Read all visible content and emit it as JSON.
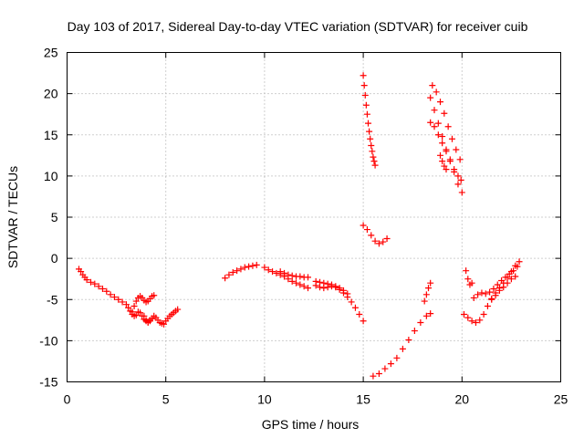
{
  "chart_data": {
    "type": "scatter",
    "title": "Day 103 of 2017, Sidereal Day-to-day VTEC variation (SDTVAR) for receiver cuib",
    "xlabel": "GPS time / hours",
    "ylabel": "SDTVAR / TECUs",
    "xlim": [
      0,
      25
    ],
    "ylim": [
      -15,
      25
    ],
    "xticks": [
      "0",
      "5",
      "10",
      "15",
      "20",
      "25"
    ],
    "yticks": [
      "-15",
      "-10",
      "-5",
      "0",
      "5",
      "10",
      "15",
      "20",
      "25"
    ],
    "xtick_values": [
      0,
      5,
      10,
      15,
      20,
      25
    ],
    "ytick_values": [
      -15,
      -10,
      -5,
      0,
      5,
      10,
      15,
      20,
      25
    ],
    "grid": true,
    "marker": "plus",
    "color": "#ff0000",
    "series": [
      {
        "x": [
          0.6,
          0.7,
          0.8,
          0.9,
          1.0,
          1.2,
          1.4,
          1.6,
          1.8,
          2.0,
          2.2,
          2.4,
          2.6,
          2.8,
          3.0,
          3.1,
          3.2,
          3.3,
          3.4,
          3.5,
          3.6,
          3.7,
          3.8,
          3.9,
          4.0,
          4.1,
          4.2,
          4.3
        ],
        "y": [
          -1.3,
          -1.6,
          -2.0,
          -2.3,
          -2.6,
          -2.9,
          -3.1,
          -3.4,
          -3.7,
          -4.0,
          -4.4,
          -4.7,
          -5.0,
          -5.3,
          -5.6,
          -6.0,
          -6.4,
          -6.8,
          -7.0,
          -6.9,
          -6.5,
          -6.6,
          -7.0,
          -7.4,
          -7.6,
          -7.7,
          -7.5,
          -7.3
        ]
      },
      {
        "x": [
          3.3,
          3.4,
          3.5,
          3.6,
          3.7,
          3.8,
          3.9,
          4.0,
          4.1,
          4.2,
          4.3,
          4.4
        ],
        "y": [
          -6.5,
          -5.8,
          -5.2,
          -4.8,
          -4.6,
          -4.8,
          -5.1,
          -5.3,
          -5.2,
          -4.9,
          -4.6,
          -4.5
        ]
      },
      {
        "x": [
          3.9,
          4.0,
          4.1,
          4.2,
          4.3,
          4.4,
          4.5,
          4.6,
          4.7,
          4.8,
          4.9,
          5.0,
          5.1,
          5.2,
          5.3,
          5.4,
          5.5,
          5.6
        ],
        "y": [
          -7.0,
          -7.5,
          -7.8,
          -7.6,
          -7.3,
          -7.0,
          -7.2,
          -7.5,
          -7.8,
          -7.9,
          -8.0,
          -7.6,
          -7.3,
          -7.0,
          -6.8,
          -6.6,
          -6.4,
          -6.2
        ]
      },
      {
        "x": [
          8.0,
          8.2,
          8.4,
          8.6,
          8.8,
          9.0,
          9.2,
          9.4,
          9.6
        ],
        "y": [
          -2.4,
          -2.0,
          -1.7,
          -1.5,
          -1.3,
          -1.1,
          -1.0,
          -0.9,
          -0.8
        ]
      },
      {
        "x": [
          10.0,
          10.2,
          10.4,
          10.6,
          10.8,
          11.0,
          11.2,
          11.4,
          11.6,
          11.8,
          12.0,
          12.2
        ],
        "y": [
          -1.1,
          -1.4,
          -1.6,
          -1.8,
          -2.0,
          -2.2,
          -2.5,
          -2.8,
          -3.0,
          -3.2,
          -3.4,
          -3.6
        ]
      },
      {
        "x": [
          10.8,
          11.0,
          11.2,
          11.4,
          11.6,
          11.8,
          12.0,
          12.2
        ],
        "y": [
          -1.6,
          -1.8,
          -2.0,
          -2.1,
          -2.2,
          -2.2,
          -2.3,
          -2.3
        ]
      },
      {
        "x": [
          12.6,
          12.8,
          13.0,
          13.2,
          13.4,
          13.6,
          13.8,
          14.0,
          14.2,
          14.4,
          14.6,
          14.8,
          15.0
        ],
        "y": [
          -3.3,
          -3.5,
          -3.6,
          -3.5,
          -3.4,
          -3.5,
          -3.8,
          -4.2,
          -4.7,
          -5.3,
          -6.0,
          -6.8,
          -7.6
        ]
      },
      {
        "x": [
          12.6,
          12.8,
          13.0,
          13.2,
          13.4,
          13.6,
          13.8,
          14.0,
          14.2
        ],
        "y": [
          -2.8,
          -2.9,
          -3.0,
          -3.1,
          -3.2,
          -3.4,
          -3.6,
          -3.9,
          -4.3
        ]
      },
      {
        "x": [
          15.0,
          15.05,
          15.1,
          15.15,
          15.2,
          15.25,
          15.3,
          15.35,
          15.4,
          15.45,
          15.5,
          15.55,
          15.6
        ],
        "y": [
          22.2,
          21.0,
          19.8,
          18.6,
          17.5,
          16.4,
          15.4,
          14.5,
          13.7,
          13.0,
          12.3,
          11.8,
          11.3
        ]
      },
      {
        "x": [
          15.0,
          15.2,
          15.4,
          15.6,
          15.8,
          16.0,
          16.2
        ],
        "y": [
          4.0,
          3.5,
          2.8,
          2.1,
          1.8,
          2.0,
          2.4
        ]
      },
      {
        "x": [
          15.5,
          15.8,
          16.1,
          16.4,
          16.7,
          17.0,
          17.3,
          17.6,
          17.9,
          18.2,
          18.4
        ],
        "y": [
          -14.3,
          -14.0,
          -13.4,
          -12.8,
          -12.1,
          -11.0,
          -9.9,
          -8.8,
          -7.8,
          -7.0,
          -6.7
        ]
      },
      {
        "x": [
          18.1,
          18.2,
          18.3,
          18.4
        ],
        "y": [
          -5.2,
          -4.4,
          -3.6,
          -3.0
        ]
      },
      {
        "x": [
          18.4,
          18.6,
          18.8,
          19.0,
          19.2,
          19.4,
          19.6,
          19.8,
          19.95
        ],
        "y": [
          19.5,
          18.0,
          16.4,
          14.8,
          13.2,
          11.8,
          10.8,
          10.0,
          9.5
        ]
      },
      {
        "x": [
          18.5,
          18.7,
          18.9,
          19.1,
          19.3,
          19.5,
          19.7,
          19.9
        ],
        "y": [
          21.0,
          20.2,
          19.0,
          17.6,
          16.0,
          14.5,
          13.2,
          12.0
        ]
      },
      {
        "x": [
          18.4,
          18.6,
          18.8,
          19.0,
          19.2,
          19.4,
          19.6,
          19.8,
          20.0
        ],
        "y": [
          16.5,
          16.0,
          15.0,
          14.0,
          13.0,
          12.0,
          10.5,
          9.0,
          8.0
        ]
      },
      {
        "x": [
          18.9,
          19.0,
          19.1,
          19.2
        ],
        "y": [
          12.5,
          11.8,
          11.2,
          10.8
        ]
      },
      {
        "x": [
          20.2,
          20.3,
          20.4,
          20.5
        ],
        "y": [
          -1.5,
          -2.5,
          -3.2,
          -3.0
        ]
      },
      {
        "x": [
          20.1,
          20.3,
          20.5,
          20.7,
          20.9,
          21.1,
          21.3,
          21.5,
          21.7,
          21.9,
          22.1,
          22.3,
          22.5,
          22.7,
          22.9
        ],
        "y": [
          -6.8,
          -7.2,
          -7.6,
          -7.8,
          -7.5,
          -6.8,
          -5.8,
          -4.9,
          -4.2,
          -3.6,
          -3.0,
          -2.3,
          -1.6,
          -0.9,
          -0.4
        ]
      },
      {
        "x": [
          20.6,
          20.8,
          21.0,
          21.2,
          21.4,
          21.6,
          21.8,
          22.0,
          22.2,
          22.4,
          22.6,
          22.8
        ],
        "y": [
          -4.8,
          -4.4,
          -4.2,
          -4.3,
          -4.1,
          -3.7,
          -3.2,
          -2.7,
          -2.3,
          -1.9,
          -1.5,
          -1.0
        ]
      },
      {
        "x": [
          21.5,
          21.7,
          21.9,
          22.1,
          22.3,
          22.5,
          22.7
        ],
        "y": [
          -5.0,
          -4.5,
          -3.9,
          -3.5,
          -3.0,
          -2.5,
          -2.2
        ]
      }
    ]
  }
}
